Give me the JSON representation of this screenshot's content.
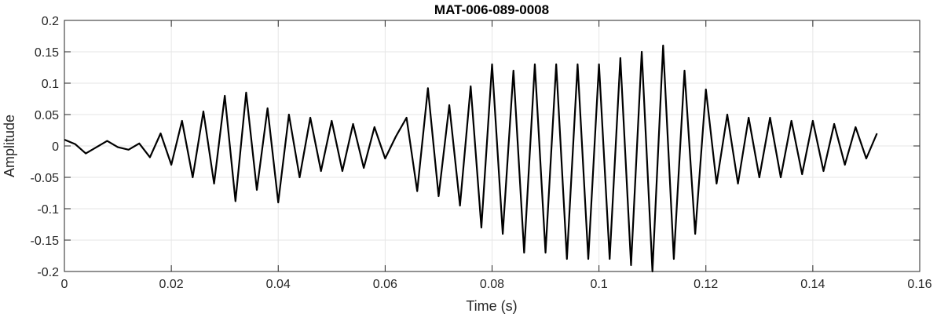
{
  "chart_data": {
    "type": "line",
    "title": "MAT-006-089-0008",
    "xlabel": "Time (s)",
    "ylabel": "Amplitude",
    "xlim": [
      0,
      0.16
    ],
    "ylim": [
      -0.2,
      0.2
    ],
    "grid": true,
    "x_ticks": [
      0,
      0.02,
      0.04,
      0.06,
      0.08,
      0.1,
      0.12,
      0.14,
      0.16
    ],
    "x_tick_labels": [
      "0",
      "0.02",
      "0.04",
      "0.06",
      "0.08",
      "0.1",
      "0.12",
      "0.14",
      "0.16"
    ],
    "y_ticks": [
      -0.2,
      -0.15,
      -0.1,
      -0.05,
      0,
      0.05,
      0.1,
      0.15,
      0.2
    ],
    "y_tick_labels": [
      "-0.2",
      "-0.15",
      "-0.1",
      "-0.05",
      "0",
      "0.05",
      "0.1",
      "0.15",
      "0.2"
    ],
    "line_color": "#000000",
    "grid_color": "#e6e6e6",
    "series": [
      {
        "x": [
          0,
          0.002,
          0.004,
          0.006,
          0.008,
          0.01,
          0.012,
          0.014,
          0.016,
          0.018,
          0.02,
          0.022,
          0.024,
          0.026,
          0.028,
          0.03,
          0.032,
          0.034,
          0.036,
          0.038,
          0.04,
          0.042,
          0.044,
          0.046,
          0.048,
          0.05,
          0.052,
          0.054,
          0.056,
          0.058,
          0.06,
          0.062,
          0.064,
          0.066,
          0.068,
          0.07,
          0.072,
          0.074,
          0.076,
          0.078,
          0.08,
          0.082,
          0.084,
          0.086,
          0.088,
          0.09,
          0.092,
          0.094,
          0.096,
          0.098,
          0.1,
          0.102,
          0.104,
          0.106,
          0.108,
          0.11,
          0.112,
          0.114,
          0.116,
          0.118,
          0.12,
          0.122,
          0.124,
          0.126,
          0.128,
          0.13,
          0.132,
          0.134,
          0.136,
          0.138,
          0.14,
          0.142,
          0.144,
          0.146,
          0.148,
          0.15,
          0.152
        ],
        "y": [
          0.01,
          0.003,
          -0.012,
          -0.002,
          0.008,
          -0.002,
          -0.006,
          0.004,
          -0.018,
          0.02,
          -0.03,
          0.04,
          -0.05,
          0.055,
          -0.06,
          0.08,
          -0.088,
          0.085,
          -0.07,
          0.06,
          -0.09,
          0.05,
          -0.05,
          0.045,
          -0.04,
          0.04,
          -0.04,
          0.035,
          -0.035,
          0.03,
          -0.02,
          0.015,
          0.045,
          -0.072,
          0.092,
          -0.08,
          0.065,
          -0.095,
          0.095,
          -0.13,
          0.13,
          -0.14,
          0.12,
          -0.17,
          0.13,
          -0.17,
          0.13,
          -0.18,
          0.13,
          -0.18,
          0.13,
          -0.18,
          0.14,
          -0.19,
          0.15,
          -0.2,
          0.16,
          -0.18,
          0.12,
          -0.14,
          0.09,
          -0.06,
          0.05,
          -0.06,
          0.045,
          -0.05,
          0.045,
          -0.05,
          0.04,
          -0.045,
          0.04,
          -0.04,
          0.035,
          -0.03,
          0.03,
          -0.02,
          0.02
        ]
      }
    ]
  }
}
